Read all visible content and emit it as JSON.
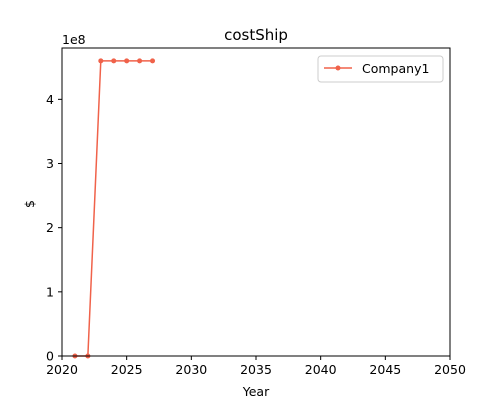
{
  "chart_data": {
    "type": "line",
    "title": "costShip",
    "xlabel": "Year",
    "ylabel": "$",
    "y_scale_label": "1e8",
    "xlim": [
      2020,
      2050
    ],
    "ylim": [
      0,
      480000000
    ],
    "x_ticks": [
      2020,
      2025,
      2030,
      2035,
      2040,
      2045,
      2050
    ],
    "y_ticks": [
      0,
      100000000,
      200000000,
      300000000,
      400000000
    ],
    "y_tick_labels": [
      "0",
      "1",
      "2",
      "3",
      "4"
    ],
    "grid": false,
    "legend_position": "top-right",
    "series": [
      {
        "name": "Company1",
        "color": "#f0624a",
        "marker": "circle",
        "x": [
          2021,
          2022,
          2023,
          2024,
          2025,
          2026,
          2027
        ],
        "y": [
          0,
          0,
          460000000,
          460000000,
          460000000,
          460000000,
          460000000
        ]
      }
    ]
  }
}
